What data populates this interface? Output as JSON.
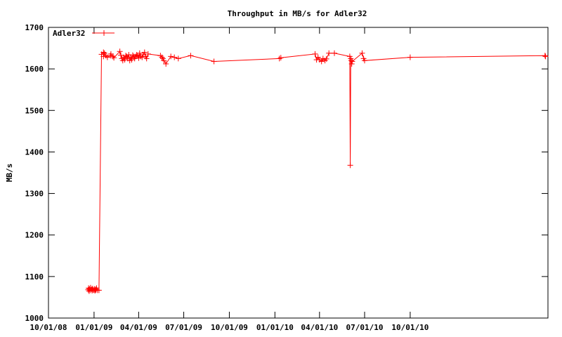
{
  "chart_data": {
    "type": "line",
    "title": "Throughput in MB/s for Adler32",
    "xlabel": "",
    "ylabel": "MB/s",
    "x_type": "date",
    "xlim": [
      "2008-10-01",
      "2011-07-06"
    ],
    "ylim": [
      1000,
      1700
    ],
    "grid": false,
    "legend_position": "top-left",
    "x_tick_labels": [
      "10/01/08",
      "01/01/09",
      "04/01/09",
      "07/01/09",
      "10/01/09",
      "01/01/10",
      "04/01/10",
      "07/01/10",
      "10/01/10"
    ],
    "x_tick_dates": [
      "2008-10-01",
      "2009-01-01",
      "2009-04-01",
      "2009-07-01",
      "2009-10-01",
      "2010-01-01",
      "2010-04-01",
      "2010-07-01",
      "2010-10-01"
    ],
    "y_ticks": [
      1000,
      1100,
      1200,
      1300,
      1400,
      1500,
      1600,
      1700
    ],
    "series": [
      {
        "name": "Adler32",
        "color": "#ff0000",
        "marker": "plus",
        "x": [
          "2008-12-20",
          "2008-12-21",
          "2008-12-22",
          "2008-12-23",
          "2008-12-24",
          "2008-12-25",
          "2008-12-27",
          "2008-12-28",
          "2008-12-29",
          "2008-12-30",
          "2009-01-01",
          "2009-01-02",
          "2009-01-03",
          "2009-01-04",
          "2009-01-05",
          "2009-01-06",
          "2009-01-08",
          "2009-01-11",
          "2009-01-16",
          "2009-01-20",
          "2009-01-20",
          "2009-01-22",
          "2009-01-25",
          "2009-01-28",
          "2009-02-03",
          "2009-02-04",
          "2009-02-08",
          "2009-02-10",
          "2009-02-22",
          "2009-02-24",
          "2009-02-26",
          "2009-02-28",
          "2009-03-02",
          "2009-03-04",
          "2009-03-06",
          "2009-03-08",
          "2009-03-10",
          "2009-03-12",
          "2009-03-14",
          "2009-03-16",
          "2009-03-18",
          "2009-03-20",
          "2009-03-22",
          "2009-03-24",
          "2009-03-26",
          "2009-03-28",
          "2009-03-30",
          "2009-04-01",
          "2009-04-03",
          "2009-04-05",
          "2009-04-08",
          "2009-04-10",
          "2009-04-13",
          "2009-04-15",
          "2009-04-17",
          "2009-04-20",
          "2009-05-15",
          "2009-05-18",
          "2009-05-20",
          "2009-05-22",
          "2009-05-26",
          "2009-06-05",
          "2009-06-12",
          "2009-06-20",
          "2009-07-15",
          "2009-08-31",
          "2010-01-10",
          "2010-01-13",
          "2010-03-23",
          "2010-03-26",
          "2010-03-29",
          "2010-04-01",
          "2010-04-05",
          "2010-04-08",
          "2010-04-12",
          "2010-04-15",
          "2010-04-20",
          "2010-05-01",
          "2010-06-01",
          "2010-06-02",
          "2010-06-03",
          "2010-06-04",
          "2010-06-05",
          "2010-06-06",
          "2010-06-26",
          "2010-06-29",
          "2010-07-01",
          "2010-10-01",
          "2011-06-30",
          "2011-07-01"
        ],
        "values": [
          1068,
          1072,
          1065,
          1070,
          1067,
          1073,
          1069,
          1066,
          1071,
          1068,
          1067,
          1070,
          1066,
          1069,
          1068,
          1072,
          1067,
          1067,
          1635,
          1640,
          1630,
          1638,
          1632,
          1628,
          1632,
          1636,
          1630,
          1627,
          1642,
          1633,
          1625,
          1620,
          1628,
          1622,
          1632,
          1630,
          1625,
          1634,
          1620,
          1628,
          1622,
          1633,
          1630,
          1625,
          1630,
          1634,
          1632,
          1626,
          1638,
          1630,
          1628,
          1634,
          1640,
          1630,
          1625,
          1636,
          1632,
          1628,
          1625,
          1620,
          1612,
          1630,
          1628,
          1625,
          1632,
          1618,
          1625,
          1627,
          1636,
          1622,
          1628,
          1622,
          1618,
          1625,
          1620,
          1624,
          1638,
          1638,
          1630,
          1368,
          1625,
          1620,
          1612,
          1618,
          1638,
          1625,
          1620,
          1628,
          1632,
          1630
        ]
      }
    ]
  }
}
